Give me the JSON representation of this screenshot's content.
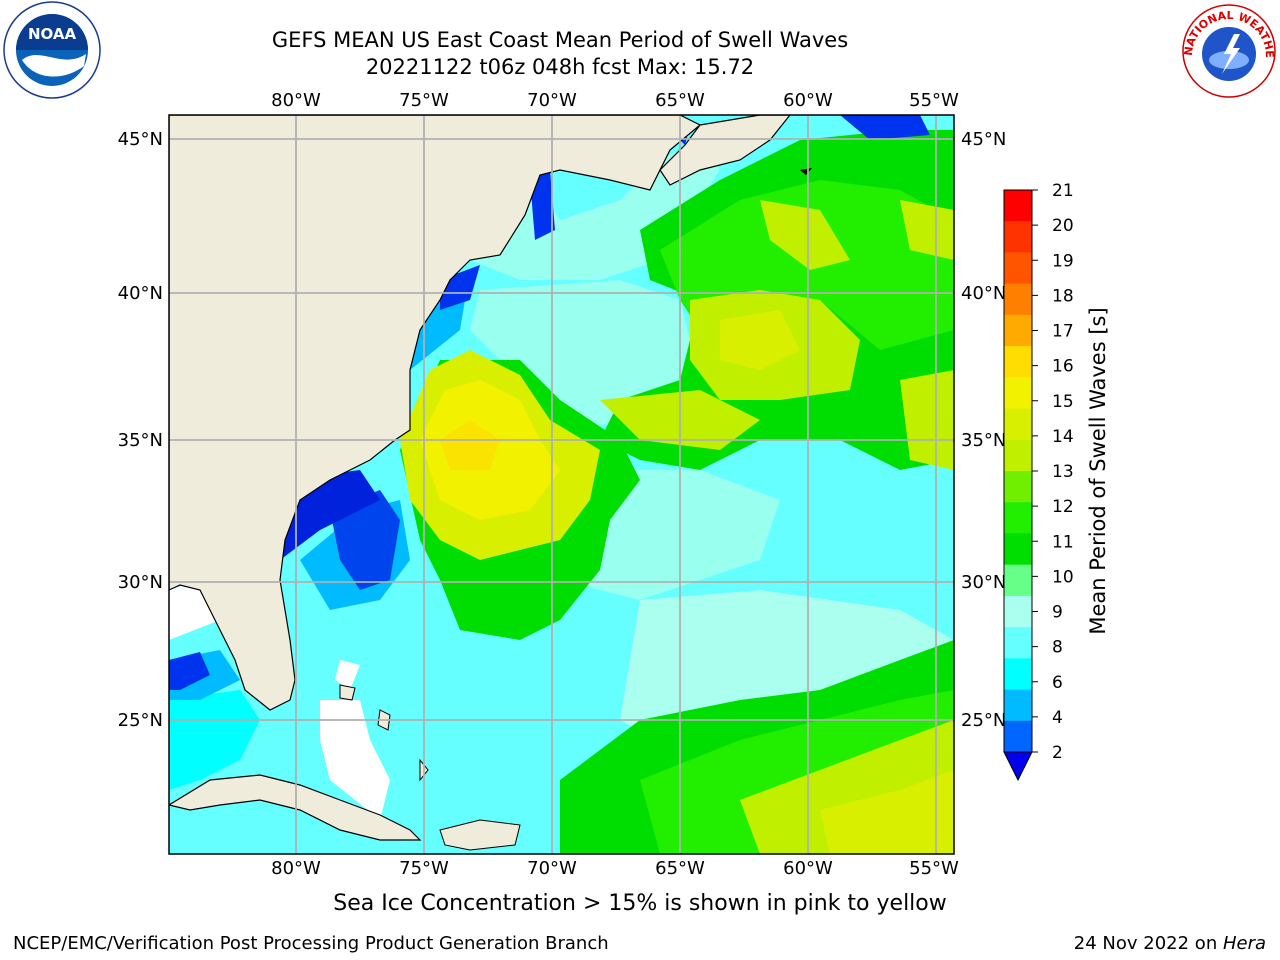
{
  "title_line1": "GEFS MEAN US East Coast Mean Period of Swell Waves",
  "title_line2": "20221122 t06z 048h fcst   Max: 15.72",
  "ice_note": "Sea Ice Concentration > 15% is shown in pink to yellow",
  "footer_left": "NCEP/EMC/Verification Post Processing Product Generation Branch",
  "footer_date": "24 Nov 2022 on ",
  "footer_host": "Hera",
  "logos": {
    "left": "noaa-logo",
    "right": "nws-logo",
    "nws_ring_text": "NATIONAL WEATHER SERVICE"
  },
  "map": {
    "lon_labels": [
      "80°W",
      "75°W",
      "70°W",
      "65°W",
      "60°W",
      "55°W"
    ],
    "lat_labels": [
      "45°N",
      "40°N",
      "35°N",
      "30°N",
      "25°N"
    ]
  },
  "colorbar": {
    "label": "Mean Period of Swell Waves [s]",
    "ticks": [
      "21",
      "20",
      "19",
      "18",
      "17",
      "16",
      "15",
      "14",
      "13",
      "12",
      "11",
      "10",
      "9",
      "8",
      "6",
      "4",
      "2"
    ],
    "colors": [
      "#ff0000",
      "#ff3300",
      "#ff5500",
      "#ff8000",
      "#ffaa00",
      "#ffdd00",
      "#f2f200",
      "#d8f000",
      "#c0f000",
      "#70f000",
      "#22ee00",
      "#00dd00",
      "#66ff88",
      "#aaffee",
      "#66ffff",
      "#00ffff",
      "#00bbff",
      "#0066ff"
    ],
    "extend_color": "#0000ee"
  },
  "colors": {
    "land": "#efecdc",
    "grid": "#b0b0b0"
  }
}
